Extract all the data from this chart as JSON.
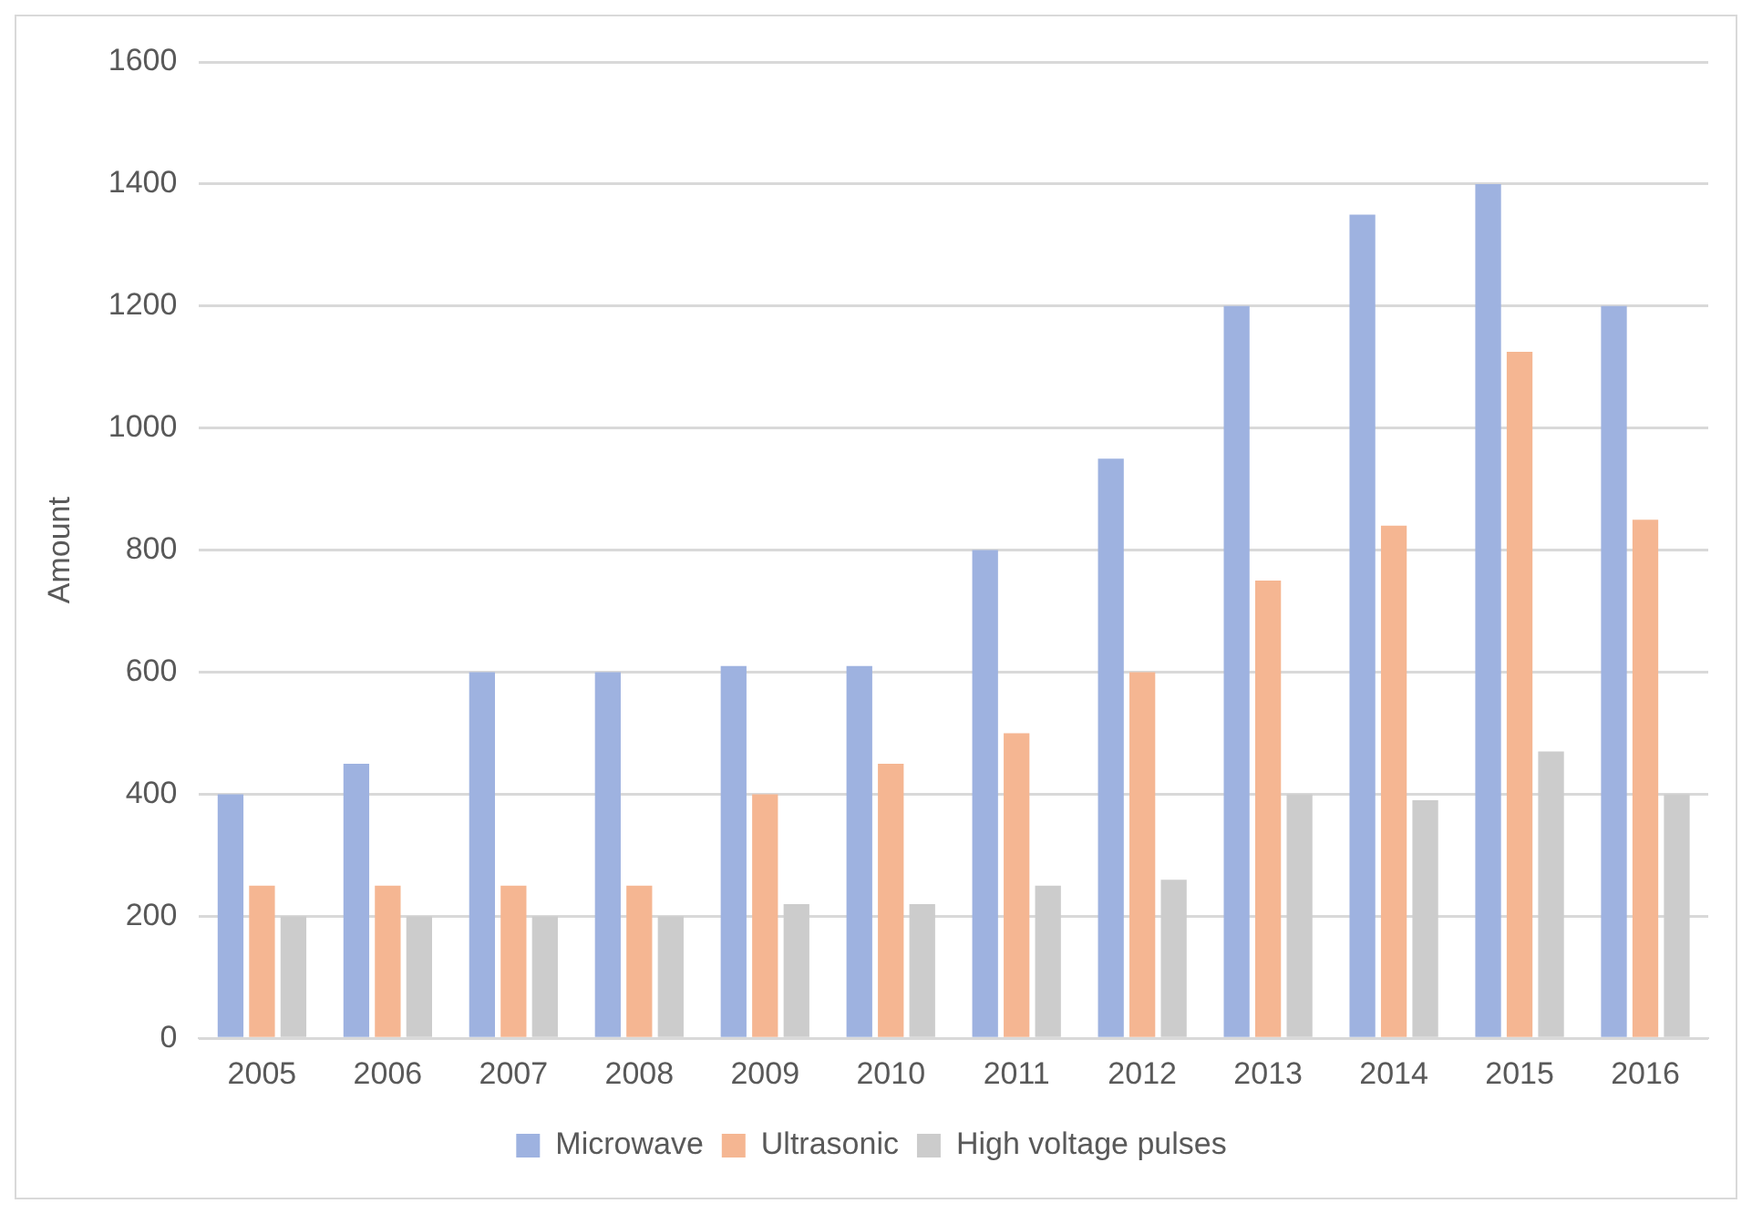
{
  "chart_data": {
    "type": "bar",
    "ylabel": "Amount",
    "categories": [
      "2005",
      "2006",
      "2007",
      "2008",
      "2009",
      "2010",
      "2011",
      "2012",
      "2013",
      "2014",
      "2015",
      "2016"
    ],
    "series": [
      {
        "name": "Microwave",
        "color": "#9eb2e0",
        "values": [
          400,
          450,
          600,
          600,
          610,
          610,
          800,
          950,
          1200,
          1350,
          1400,
          1200
        ]
      },
      {
        "name": "Ultrasonic",
        "color": "#f5b692",
        "values": [
          250,
          250,
          250,
          250,
          400,
          450,
          500,
          600,
          750,
          840,
          1125,
          850
        ]
      },
      {
        "name": "High voltage pulses",
        "color": "#cccccc",
        "values": [
          200,
          200,
          200,
          200,
          220,
          220,
          250,
          260,
          400,
          390,
          470,
          400
        ]
      }
    ],
    "ylim": [
      0,
      1600
    ],
    "yticks": [
      0,
      200,
      400,
      600,
      800,
      1000,
      1200,
      1400,
      1600
    ],
    "grid": "y",
    "legend": "bottom"
  }
}
